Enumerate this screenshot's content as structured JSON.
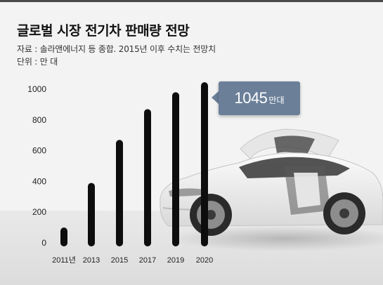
{
  "header": {
    "title": "글로벌 시장 전기차 판매량 전망",
    "source": "자료 : 솔라앤에너지 등 종합.  2015년 이후 수치는 전망치",
    "unit": "단위 : 만 대"
  },
  "callout": {
    "value": "1045",
    "unit": "만대"
  },
  "colors": {
    "bar": "#0d0d0d",
    "callout": "#6b7f99",
    "background": "#f3f3f3"
  },
  "chart_data": {
    "type": "bar",
    "categories": [
      "2011년",
      "2013",
      "2015",
      "2017",
      "2019",
      "2020"
    ],
    "values": [
      100,
      390,
      670,
      870,
      980,
      1045
    ],
    "ylim": [
      0,
      1000
    ],
    "yticks": [
      0,
      200,
      400,
      600,
      800,
      1000
    ],
    "ytick_labels": [
      "0",
      "200",
      "400",
      "600",
      "800",
      "1000"
    ],
    "grid": false,
    "title": "글로벌 시장 전기차 판매량 전망",
    "xlabel": "",
    "ylabel": ""
  }
}
